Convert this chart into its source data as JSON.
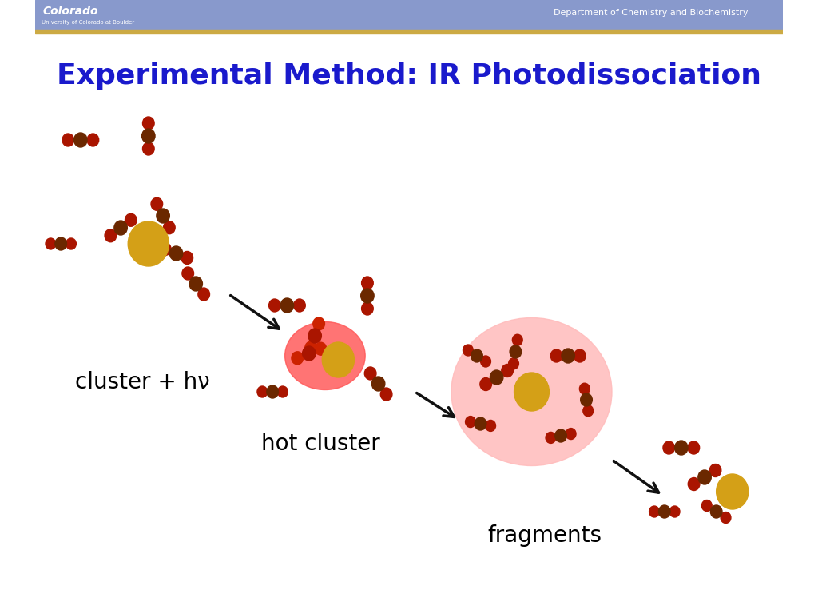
{
  "title": "Experimental Method: IR Photodissociation",
  "title_color": "#1a1acc",
  "title_fontsize": 26,
  "bg_color": "#ffffff",
  "molecule_colors": {
    "cobalt": "#d4a017",
    "co2_carbon": "#6b2800",
    "co2_oxygen": "#aa1500",
    "hot_carbon": "#aa1500",
    "hot_oxygen": "#cc2200"
  },
  "ellipse_hot_color": "#ff5555",
  "ellipse_warm_color": "#ffbbbb",
  "labels": {
    "cluster_hv": "cluster + hν",
    "hot_cluster": "hot cluster",
    "fragments": "fragments"
  },
  "label_fontsize": 20,
  "arrow_color": "#111111",
  "header_bar_color": "#8899cc",
  "gold_line_color": "#ccaa44"
}
